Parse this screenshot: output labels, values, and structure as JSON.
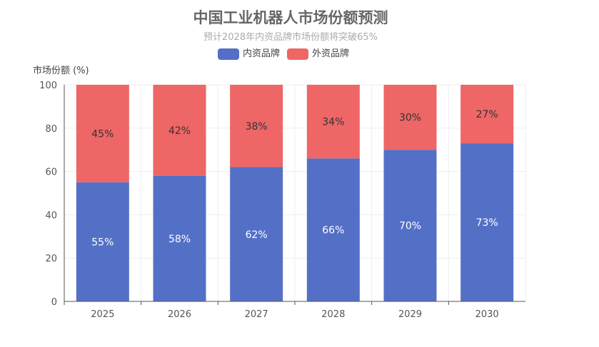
{
  "chart_data": {
    "type": "bar",
    "stacked": true,
    "title": "中国工业机器人市场份额预测",
    "subtitle": "预计2028年内资品牌市场份额将突破65%",
    "ylabel": "市场份额 (%)",
    "xlabel": "",
    "ylim": [
      0,
      100
    ],
    "yticks": [
      0,
      20,
      40,
      60,
      80,
      100
    ],
    "grid": true,
    "legend_position": "top",
    "categories": [
      "2025",
      "2026",
      "2027",
      "2028",
      "2029",
      "2030"
    ],
    "series": [
      {
        "name": "内资品牌",
        "values": [
          55,
          58,
          62,
          66,
          70,
          73
        ],
        "color": "#5470c6",
        "labels": [
          "55%",
          "58%",
          "62%",
          "66%",
          "70%",
          "73%"
        ]
      },
      {
        "name": "外资品牌",
        "values": [
          45,
          42,
          38,
          34,
          30,
          27
        ],
        "color": "#ee6666",
        "labels": [
          "45%",
          "42%",
          "38%",
          "34%",
          "30%",
          "27%"
        ]
      }
    ]
  }
}
